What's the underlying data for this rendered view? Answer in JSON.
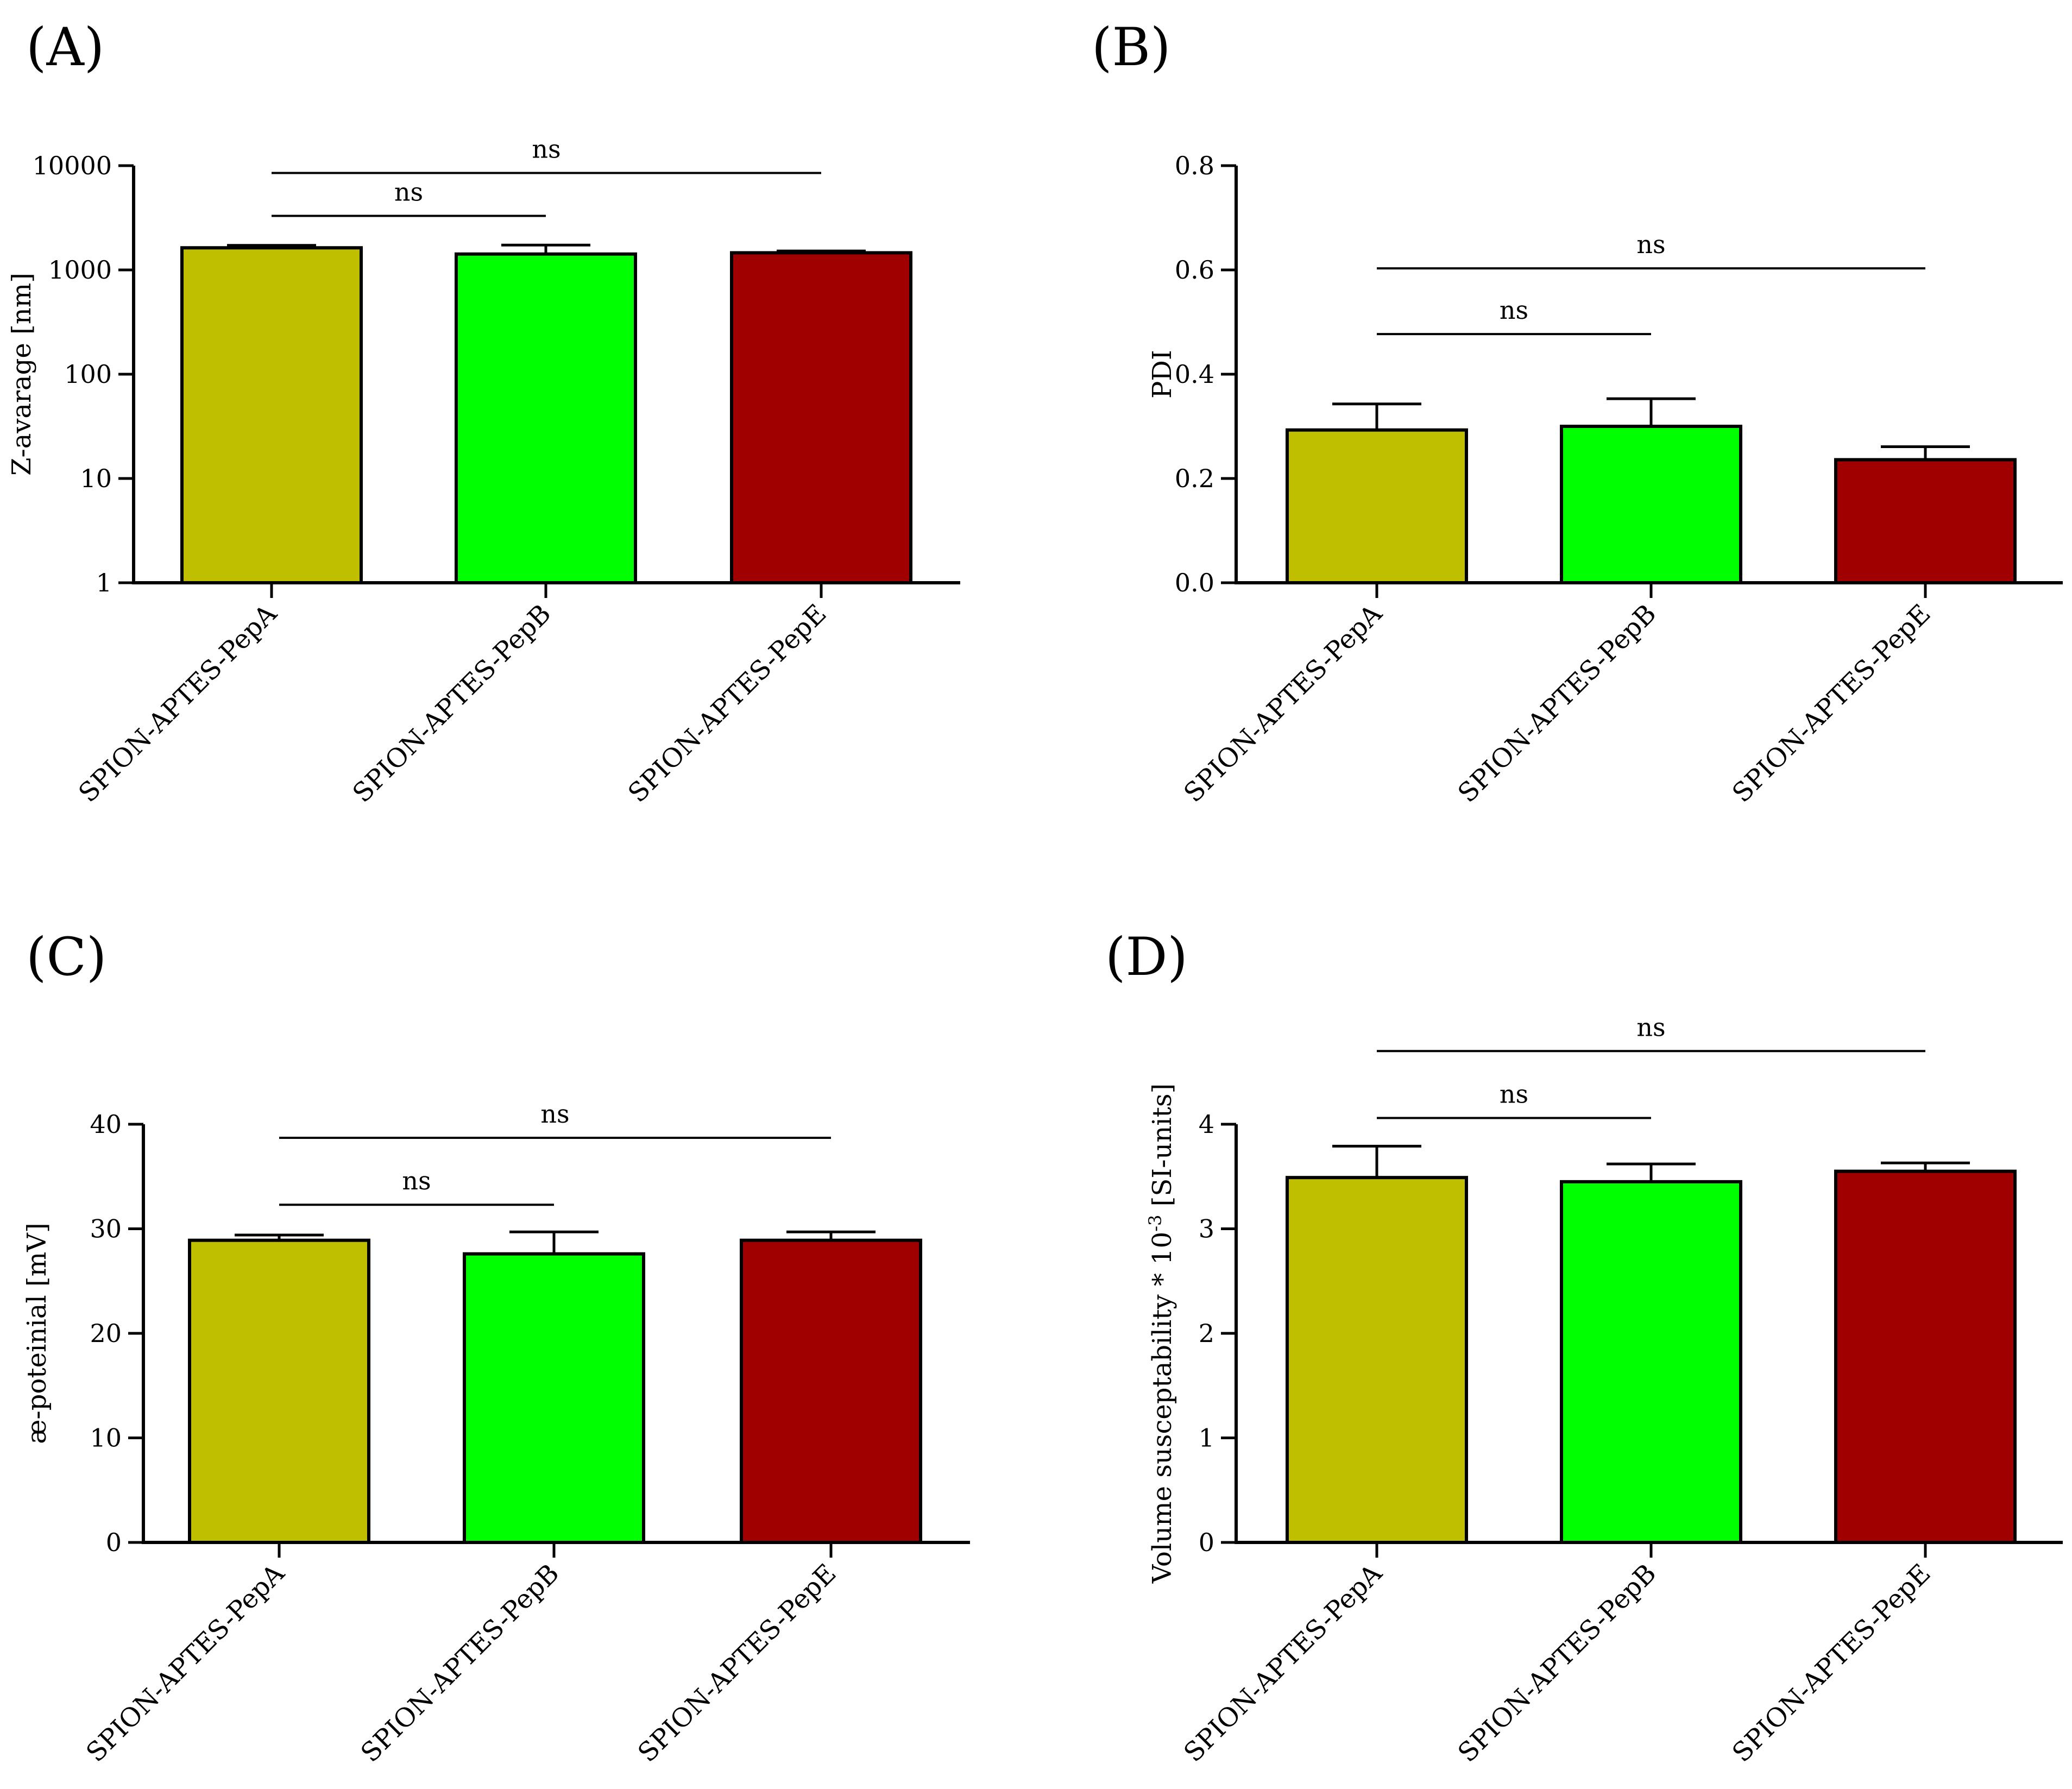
{
  "chart_data": [
    {
      "id": "A",
      "panel_label": "(A)",
      "type": "bar",
      "yscale": "log",
      "ylabel": "Z-avarage [nm]",
      "ylim": [
        1,
        10000
      ],
      "yticks": [
        1,
        10,
        100,
        1000,
        10000
      ],
      "ytick_labels": [
        "1",
        "10",
        "100",
        "1000",
        "10000"
      ],
      "categories": [
        "SPION-APTES-PepA",
        "SPION-APTES-PepB",
        "SPION-APTES-PepE"
      ],
      "values": [
        1630,
        1420,
        1460
      ],
      "errors": [
        90,
        310,
        60
      ],
      "colors": [
        "#bfbf00",
        "#00ff00",
        "#a00000"
      ],
      "significance": [
        {
          "from": 0,
          "to": 1,
          "label": "ns",
          "y": 3300
        },
        {
          "from": 0,
          "to": 2,
          "label": "ns",
          "y": 8500
        }
      ]
    },
    {
      "id": "B",
      "panel_label": "(B)",
      "type": "bar",
      "yscale": "linear",
      "ylabel": "PDI",
      "ylim": [
        0,
        0.8
      ],
      "yticks": [
        0,
        0.2,
        0.4,
        0.6,
        0.8
      ],
      "ytick_labels": [
        "0.0",
        "0.2",
        "0.4",
        "0.6",
        "0.8"
      ],
      "categories": [
        "SPION-APTES-PepA",
        "SPION-APTES-PepB",
        "SPION-APTES-PepE"
      ],
      "values": [
        0.293,
        0.3,
        0.236
      ],
      "errors": [
        0.05,
        0.053,
        0.025
      ],
      "colors": [
        "#bfbf00",
        "#00ff00",
        "#a00000"
      ],
      "significance": [
        {
          "from": 0,
          "to": 1,
          "label": "ns",
          "y": 0.477
        },
        {
          "from": 0,
          "to": 2,
          "label": "ns",
          "y": 0.603
        }
      ]
    },
    {
      "id": "C",
      "panel_label": "(C)",
      "type": "bar",
      "yscale": "linear",
      "ylabel": "æ-poteinial [mV]",
      "ylim": [
        0,
        40
      ],
      "yticks": [
        0,
        10,
        20,
        30,
        40
      ],
      "ytick_labels": [
        "0",
        "10",
        "20",
        "30",
        "40"
      ],
      "categories": [
        "SPION-APTES-PepA",
        "SPION-APTES-PepB",
        "SPION-APTES-PepE"
      ],
      "values": [
        28.9,
        27.6,
        28.9
      ],
      "errors": [
        0.5,
        2.1,
        0.8
      ],
      "colors": [
        "#bfbf00",
        "#00ff00",
        "#a00000"
      ],
      "significance": [
        {
          "from": 0,
          "to": 1,
          "label": "ns",
          "y": 32.3
        },
        {
          "from": 0,
          "to": 2,
          "label": "ns",
          "y": 38.7
        }
      ]
    },
    {
      "id": "D",
      "panel_label": "(D)",
      "type": "bar",
      "yscale": "linear",
      "ylabel_main": "Volume susceptability * 10",
      "ylabel_sup": "-3",
      "ylabel_tail": " [SI-units]",
      "ylim": [
        0,
        4
      ],
      "yticks": [
        0,
        1,
        2,
        3,
        4
      ],
      "ytick_labels": [
        "0",
        "1",
        "2",
        "3",
        "4"
      ],
      "categories": [
        "SPION-APTES-PepA",
        "SPION-APTES-PepB",
        "SPION-APTES-PepE"
      ],
      "values": [
        3.49,
        3.45,
        3.55
      ],
      "errors": [
        0.3,
        0.17,
        0.08
      ],
      "colors": [
        "#bfbf00",
        "#00ff00",
        "#a00000"
      ],
      "significance": [
        {
          "from": 0,
          "to": 1,
          "label": "ns",
          "y": 4.06
        },
        {
          "from": 0,
          "to": 2,
          "label": "ns",
          "y": 4.7
        }
      ]
    }
  ]
}
